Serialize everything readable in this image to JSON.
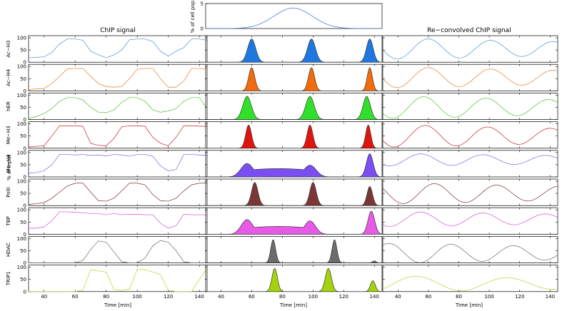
{
  "chart_data": {
    "type": "line",
    "title_left": "ChIP signal",
    "title_right": "Re−convolved ChIP signal",
    "top_panel": {
      "ylabel": "% of cell pop.",
      "yticks": [
        "0",
        "5"
      ],
      "ylim": [
        0,
        5
      ],
      "xlim": [
        30,
        145
      ],
      "series": {
        "color": "#4f7fd8",
        "center": 87,
        "sigma": 12.5,
        "amplitude": 4.1
      }
    },
    "xlim": [
      30,
      145
    ],
    "xticks": [
      "40",
      "60",
      "80",
      "100",
      "120",
      "140"
    ],
    "ylim": [
      0,
      100
    ],
    "yticks": [
      "0",
      "50",
      "100"
    ],
    "xlabel": "Time [min]",
    "y_unit_label": "% of input",
    "rows": [
      {
        "name": "Ac−H3",
        "color": "#4a90d9",
        "peak_fill": "#1f78e0",
        "x": [
          30,
          35,
          40,
          45,
          50,
          55,
          60,
          65,
          70,
          75,
          80,
          85,
          90,
          95,
          100,
          105,
          110,
          115,
          120,
          125,
          130,
          135,
          140,
          145
        ],
        "chip": [
          18,
          20,
          22,
          40,
          75,
          95,
          95,
          90,
          45,
          30,
          18,
          30,
          50,
          92,
          95,
          95,
          85,
          45,
          25,
          45,
          60,
          95,
          95,
          90
        ],
        "peaks": [
          {
            "t": 60,
            "s": 2.6,
            "h": 95
          },
          {
            "t": 99,
            "s": 2.6,
            "h": 95
          },
          {
            "t": 137,
            "s": 2.2,
            "h": 95
          }
        ],
        "reconv": {
          "offset": 55,
          "amp": 42,
          "period": 41,
          "phase": 60
        }
      },
      {
        "name": "Ac−H4",
        "color": "#ea7a2c",
        "peak_fill": "#f26b0c",
        "x": [
          30,
          35,
          40,
          45,
          50,
          55,
          60,
          65,
          70,
          75,
          80,
          85,
          90,
          95,
          100,
          105,
          110,
          115,
          120,
          125,
          130,
          135,
          140,
          145
        ],
        "chip": [
          5,
          8,
          10,
          30,
          60,
          90,
          92,
          92,
          60,
          30,
          18,
          15,
          18,
          50,
          88,
          92,
          92,
          50,
          15,
          15,
          40,
          92,
          92,
          90
        ],
        "peaks": [
          {
            "t": 60,
            "s": 2.0,
            "h": 95
          },
          {
            "t": 99,
            "s": 2.0,
            "h": 95
          },
          {
            "t": 137,
            "s": 1.7,
            "h": 95
          }
        ],
        "reconv": {
          "offset": 55,
          "amp": 42,
          "period": 41,
          "phase": 60
        }
      },
      {
        "name": "hER",
        "color": "#4fc22c",
        "peak_fill": "#31e02a",
        "x": [
          30,
          35,
          40,
          45,
          50,
          55,
          60,
          65,
          70,
          75,
          80,
          85,
          90,
          95,
          100,
          105,
          110,
          115,
          120,
          125,
          130,
          135,
          140,
          145
        ],
        "chip": [
          5,
          12,
          25,
          45,
          75,
          90,
          90,
          80,
          50,
          30,
          28,
          40,
          70,
          90,
          90,
          75,
          40,
          30,
          35,
          45,
          75,
          90,
          90,
          45
        ],
        "peaks": [
          {
            "t": 57,
            "s": 2.8,
            "h": 95
          },
          {
            "t": 98,
            "s": 2.8,
            "h": 95
          },
          {
            "t": 135,
            "s": 2.4,
            "h": 95
          }
        ],
        "reconv": {
          "offset": 50,
          "amp": 45,
          "period": 41,
          "phase": 57
        }
      },
      {
        "name": "Me−H3",
        "color": "#c42020",
        "peak_fill": "#e0140e",
        "x": [
          30,
          35,
          40,
          45,
          50,
          55,
          60,
          65,
          70,
          75,
          80,
          85,
          90,
          95,
          100,
          105,
          110,
          115,
          120,
          125,
          130,
          135,
          140,
          145
        ],
        "chip": [
          5,
          8,
          10,
          50,
          92,
          92,
          92,
          90,
          20,
          12,
          10,
          40,
          88,
          92,
          92,
          90,
          45,
          20,
          10,
          45,
          92,
          92,
          90,
          90
        ],
        "peaks": [
          {
            "t": 58,
            "s": 1.9,
            "h": 95
          },
          {
            "t": 98,
            "s": 1.9,
            "h": 95
          },
          {
            "t": 136,
            "s": 1.7,
            "h": 95
          }
        ],
        "reconv": {
          "offset": 50,
          "amp": 45,
          "period": 41,
          "phase": 58
        }
      },
      {
        "name": "Me−H4",
        "color": "#6f68e0",
        "peak_fill": "#7a4ef0",
        "x": [
          30,
          35,
          40,
          45,
          50,
          55,
          60,
          65,
          70,
          75,
          80,
          85,
          90,
          95,
          100,
          105,
          110,
          115,
          120,
          125,
          130,
          135,
          140,
          145
        ],
        "chip": [
          15,
          18,
          25,
          50,
          92,
          92,
          90,
          92,
          88,
          90,
          86,
          92,
          90,
          85,
          92,
          92,
          85,
          45,
          25,
          30,
          92,
          92,
          90,
          88
        ],
        "peaks": [
          {
            "t": 57,
            "s": 4.0,
            "h": 55
          },
          {
            "t": 98,
            "s": 4.0,
            "h": 48
          },
          {
            "t": 137,
            "s": 2.2,
            "h": 95
          }
        ],
        "plateau": {
          "from": 57,
          "to": 98,
          "h": 28
        },
        "reconv": {
          "offset": 70,
          "amp": 25,
          "period": 41,
          "phase": 96
        }
      },
      {
        "name": "PolII",
        "color": "#7a2e2e",
        "peak_fill": "#7b3636",
        "x": [
          30,
          35,
          40,
          45,
          50,
          55,
          60,
          65,
          70,
          75,
          80,
          85,
          90,
          95,
          100,
          105,
          110,
          115,
          120,
          125,
          130,
          135,
          140,
          145
        ],
        "chip": [
          5,
          8,
          12,
          30,
          55,
          80,
          92,
          92,
          55,
          20,
          18,
          30,
          60,
          92,
          92,
          85,
          45,
          20,
          18,
          30,
          60,
          85,
          92,
          92
        ],
        "peaks": [
          {
            "t": 62,
            "s": 2.1,
            "h": 95
          },
          {
            "t": 100,
            "s": 2.1,
            "h": 95
          },
          {
            "t": 137,
            "s": 1.8,
            "h": 78
          }
        ],
        "reconv": {
          "offset": 50,
          "amp": 42,
          "period": 41,
          "phase": 64
        }
      },
      {
        "name": "TBP",
        "color": "#d84ad8",
        "peak_fill": "#e65ae6",
        "x": [
          30,
          35,
          40,
          45,
          50,
          55,
          60,
          65,
          70,
          75,
          80,
          85,
          90,
          95,
          100,
          105,
          110,
          115,
          120,
          125,
          130,
          135,
          140,
          145
        ],
        "chip": [
          25,
          25,
          30,
          55,
          92,
          92,
          90,
          88,
          85,
          85,
          80,
          85,
          80,
          82,
          82,
          80,
          80,
          45,
          25,
          35,
          82,
          80,
          80,
          80
        ],
        "peaks": [
          {
            "t": 57,
            "s": 3.8,
            "h": 60
          },
          {
            "t": 98,
            "s": 3.6,
            "h": 55
          },
          {
            "t": 138,
            "s": 2.2,
            "h": 95
          }
        ],
        "plateau": {
          "from": 57,
          "to": 98,
          "h": 26
        },
        "reconv": {
          "offset": 62,
          "amp": 30,
          "period": 41,
          "phase": 96
        }
      },
      {
        "name": "HDAC",
        "color": "#6a6a6a",
        "peak_fill": "#6c6c6c",
        "x": [
          30,
          35,
          40,
          45,
          50,
          55,
          60,
          65,
          70,
          75,
          80,
          85,
          90,
          95,
          100,
          105,
          110,
          115,
          120,
          125,
          130,
          135,
          140,
          145
        ],
        "chip": [
          0,
          0,
          0,
          0,
          0,
          0,
          0,
          10,
          55,
          90,
          85,
          45,
          5,
          0,
          0,
          20,
          70,
          92,
          85,
          50,
          5,
          0,
          0,
          0
        ],
        "peaks": [
          {
            "t": 74,
            "s": 1.6,
            "h": 95
          },
          {
            "t": 114,
            "s": 1.6,
            "h": 95
          },
          {
            "t": 140,
            "s": 1.2,
            "h": 8
          }
        ],
        "reconv": {
          "offset": 40,
          "amp": 40,
          "period": 41,
          "phase": 75
        }
      },
      {
        "name": "TRIP1",
        "color": "#b6d32c",
        "peak_fill": "#a3d20e",
        "x": [
          30,
          35,
          40,
          45,
          50,
          55,
          60,
          65,
          70,
          75,
          80,
          85,
          90,
          95,
          100,
          105,
          110,
          115,
          120,
          125,
          130,
          135,
          140,
          145
        ],
        "chip": [
          0,
          0,
          0,
          0,
          0,
          0,
          0,
          5,
          90,
          85,
          80,
          8,
          5,
          10,
          92,
          90,
          80,
          70,
          5,
          0,
          0,
          0,
          50,
          95
        ],
        "peaks": [
          {
            "t": 75,
            "s": 1.8,
            "h": 95
          },
          {
            "t": 110,
            "s": 2.0,
            "h": 95
          },
          {
            "t": 139,
            "s": 1.6,
            "h": 45
          }
        ],
        "reconv": {
          "offset": 32,
          "amp": 32,
          "period": 60,
          "phase": 112
        }
      }
    ]
  }
}
